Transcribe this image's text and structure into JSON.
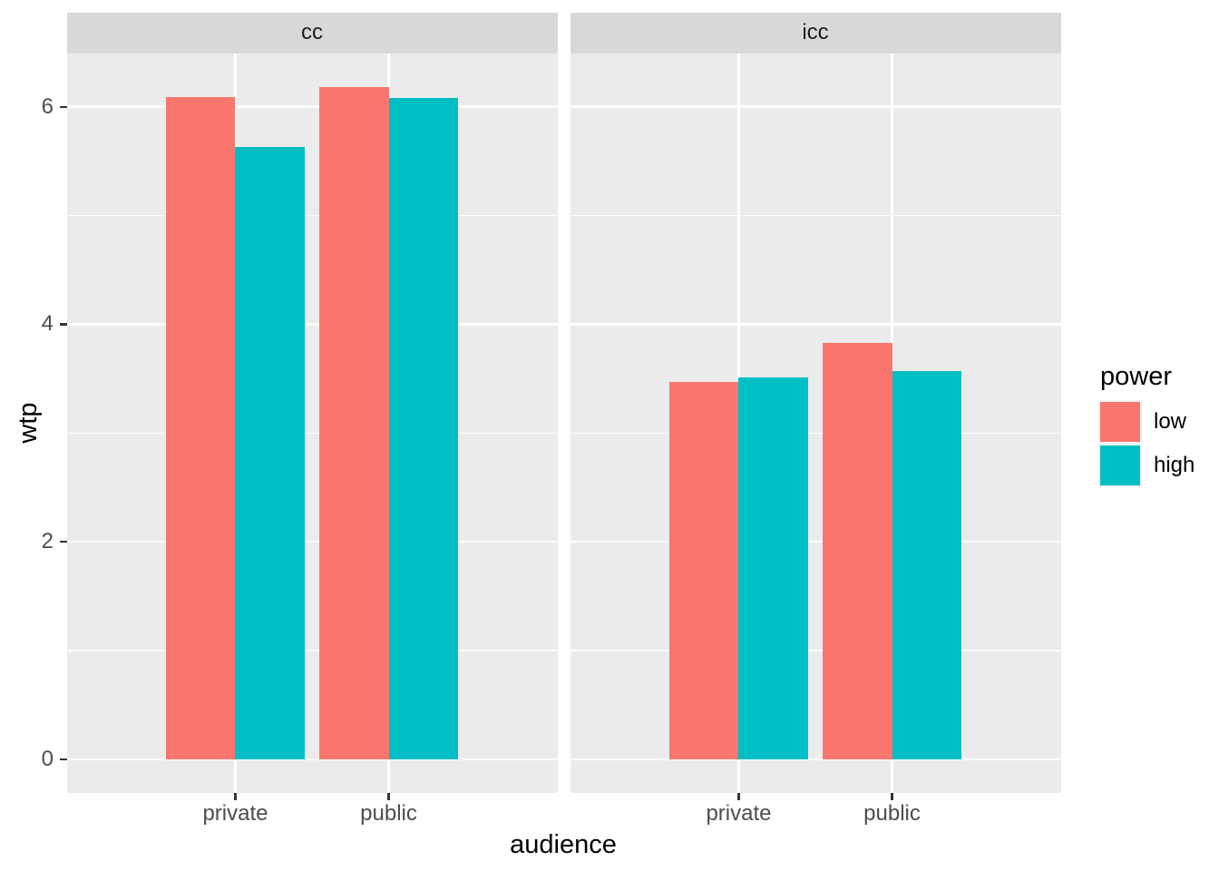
{
  "chart_data": {
    "type": "bar",
    "title": "",
    "facet_labels": [
      "cc",
      "icc"
    ],
    "categories": [
      "private",
      "public"
    ],
    "series": [
      {
        "name": "low",
        "color": "#F8766D",
        "values": {
          "cc": [
            6.09,
            6.18
          ],
          "icc": [
            3.47,
            3.83
          ]
        }
      },
      {
        "name": "high",
        "color": "#00BFC4",
        "values": {
          "cc": [
            5.63,
            6.08
          ],
          "icc": [
            3.51,
            3.57
          ]
        }
      }
    ],
    "xlabel": "audience",
    "ylabel": "wtp",
    "y_ticks": [
      "0",
      "2",
      "4",
      "6"
    ],
    "y_tick_values": [
      0,
      2,
      4,
      6
    ],
    "y_minor_tick_values": [
      1,
      3,
      5
    ],
    "ylim": [
      -0.31,
      6.49
    ],
    "grid": true,
    "legend": {
      "title": "power",
      "position": "right",
      "entries": [
        {
          "label": "low",
          "color": "#F8766D"
        },
        {
          "label": "high",
          "color": "#00BFC4"
        }
      ]
    }
  },
  "theme": {
    "figure_background": "#FFFFFF",
    "panel_background": "#EBEBEB",
    "strip_background": "#D8D8D8",
    "grid_color": "#FFFFFF",
    "tick_mark_color": "#333333",
    "axis_text_color": "#4D4D4D",
    "title_text_color": "#000000",
    "strip_text_color": "#1A1A1A",
    "legend_key_background": "#F2F2F2"
  }
}
